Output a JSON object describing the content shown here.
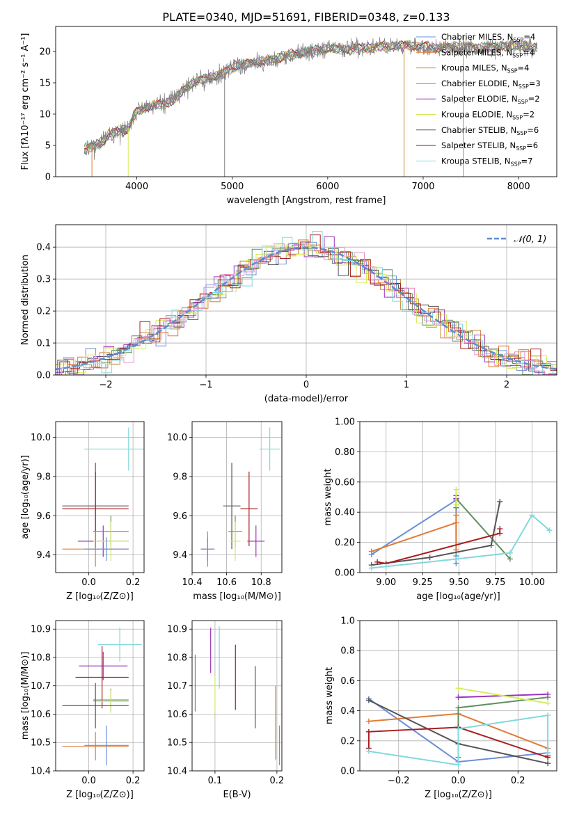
{
  "figure": {
    "title": "PLATE=0340, MJD=51691, FIBERID=0348, z=0.133"
  },
  "colors": {
    "Chabrier MILES": "#6a8fd8",
    "Salpeter MILES": "#e07b35",
    "Kroupa MILES": "#c8862e",
    "Chabrier ELODIE": "#5f8f60",
    "Salpeter ELODIE": "#9a35b8",
    "Kroupa ELODIE": "#d6ea5a",
    "Chabrier STELIB": "#555555",
    "Salpeter STELIB": "#a91e1e",
    "Kroupa STELIB": "#82d8dc",
    "data": "#7f7f7f",
    "normal": "#5b8bd6"
  },
  "chart_data": [
    {
      "id": "spectrum",
      "type": "line",
      "xlabel": "wavelength [Angstrom, rest frame]",
      "ylabel": "Flux [fλ10⁻¹⁷ erg cm⁻² s⁻¹ A⁻¹]",
      "xlim": [
        3150,
        8400
      ],
      "ylim": [
        0,
        24
      ],
      "xticks": [
        4000,
        5000,
        6000,
        7000,
        8000
      ],
      "yticks": [
        0,
        5,
        10,
        15,
        20
      ],
      "legend_position": "top-right",
      "legend": [
        {
          "label": "Chabrier MILES, N",
          "sub": "SSP",
          "suffix": "=4",
          "color": "#6a8fd8"
        },
        {
          "label": "Salpeter MILES, N",
          "sub": "SSP",
          "suffix": "=4",
          "color": "#e07b35"
        },
        {
          "label": "Kroupa MILES, N",
          "sub": "SSP",
          "suffix": "=4",
          "color": "#c8862e"
        },
        {
          "label": "Chabrier ELODIE, N",
          "sub": "SSP",
          "suffix": "=3",
          "color": "#5f8f60"
        },
        {
          "label": "Salpeter ELODIE, N",
          "sub": "SSP",
          "suffix": "=2",
          "color": "#9a35b8"
        },
        {
          "label": "Kroupa ELODIE, N",
          "sub": "SSP",
          "suffix": "=2",
          "color": "#d6ea5a"
        },
        {
          "label": "Chabrier STELIB, N",
          "sub": "SSP",
          "suffix": "=6",
          "color": "#555555"
        },
        {
          "label": "Salpeter STELIB, N",
          "sub": "SSP",
          "suffix": "=6",
          "color": "#a91e1e"
        },
        {
          "label": "Kroupa STELIB, N",
          "sub": "SSP",
          "suffix": "=7",
          "color": "#82d8dc"
        }
      ],
      "continuum": [
        [
          3450,
          4.5
        ],
        [
          3600,
          5.2
        ],
        [
          3700,
          6.5
        ],
        [
          3800,
          7.3
        ],
        [
          3900,
          7.5
        ],
        [
          4000,
          10.5
        ],
        [
          4100,
          11
        ],
        [
          4200,
          11.5
        ],
        [
          4300,
          11.7
        ],
        [
          4400,
          12.5
        ],
        [
          4500,
          14
        ],
        [
          4600,
          15
        ],
        [
          4700,
          15.5
        ],
        [
          4800,
          16
        ],
        [
          4900,
          16.5
        ],
        [
          5000,
          17.5
        ],
        [
          5200,
          18.2
        ],
        [
          5400,
          18.6
        ],
        [
          5600,
          19.5
        ],
        [
          5800,
          20
        ],
        [
          6000,
          20.5
        ],
        [
          6200,
          20.3
        ],
        [
          6400,
          20.5
        ],
        [
          6600,
          20.8
        ],
        [
          6800,
          21
        ],
        [
          7000,
          20.8
        ],
        [
          7200,
          20.5
        ],
        [
          7400,
          20.8
        ],
        [
          7600,
          20.5
        ],
        [
          7800,
          20.8
        ],
        [
          8000,
          21
        ],
        [
          8200,
          20.5
        ]
      ]
    },
    {
      "id": "residuals",
      "type": "histogram",
      "xlabel": "(data-model)/error",
      "ylabel": "Normed distribution",
      "xlim": [
        -2.5,
        2.5
      ],
      "ylim": [
        0,
        0.47
      ],
      "xticks": [
        -2,
        -1,
        0,
        1,
        2
      ],
      "yticks": [
        0.0,
        0.1,
        0.2,
        0.3,
        0.4
      ],
      "grid": true,
      "legend_position": "top-right",
      "normal_label": "𝒩(0, 1)",
      "normal": {
        "mu": 0,
        "sigma": 1
      }
    },
    {
      "id": "age-vs-Z",
      "type": "errorbar",
      "xlabel": "Z [log₁₀(Z/Z⊙)]",
      "ylabel": "age  [log₁₀(age/yr)]",
      "xlim": [
        -0.15,
        0.25
      ],
      "ylim": [
        9.31,
        10.08
      ],
      "xticks": [
        0.0,
        0.2
      ],
      "yticks": [
        9.4,
        9.6,
        9.8,
        10.0
      ],
      "points": [
        {
          "model": "Kroupa STELIB",
          "x": 0.18,
          "y": 9.94,
          "xerr": 0.2,
          "yerr": 0.11
        },
        {
          "model": "Chabrier STELIB",
          "x": 0.03,
          "y": 9.65,
          "xerr": 0.15,
          "yerr": 0.22
        },
        {
          "model": "Salpeter STELIB",
          "x": 0.03,
          "y": 9.635,
          "xerr": 0.15,
          "yerr": 0.19
        },
        {
          "model": "Salpeter ELODIE",
          "x": 0.065,
          "y": 9.47,
          "xerr": 0.115,
          "yerr": 0.08
        },
        {
          "model": "Chabrier ELODIE",
          "x": 0.1,
          "y": 9.52,
          "xerr": 0.08,
          "yerr": 0.08
        },
        {
          "model": "Kroupa ELODIE",
          "x": 0.1,
          "y": 9.47,
          "xerr": 0.08,
          "yerr": 0.1
        },
        {
          "model": "Salpeter MILES",
          "x": 0.03,
          "y": 9.43,
          "xerr": 0.15,
          "yerr": 0.09
        },
        {
          "model": "Chabrier MILES",
          "x": 0.08,
          "y": 9.43,
          "xerr": 0.1,
          "yerr": 0.06
        }
      ]
    },
    {
      "id": "age-vs-mass",
      "type": "errorbar",
      "xlabel": "mass [log₁₀(M/M⊙)]",
      "xlim": [
        10.4,
        10.92
      ],
      "ylim": [
        9.31,
        10.08
      ],
      "xticks": [
        10.4,
        10.6,
        10.8
      ],
      "yticks": [
        9.4,
        9.6,
        9.8,
        10.0
      ],
      "points": [
        {
          "model": "Kroupa STELIB",
          "x": 10.85,
          "y": 9.94,
          "xerr": 0.06,
          "yerr": 0.11
        },
        {
          "model": "Chabrier STELIB",
          "x": 10.63,
          "y": 9.65,
          "xerr": 0.05,
          "yerr": 0.22
        },
        {
          "model": "Salpeter STELIB",
          "x": 10.73,
          "y": 9.635,
          "xerr": 0.05,
          "yerr": 0.19
        },
        {
          "model": "Salpeter ELODIE",
          "x": 10.77,
          "y": 9.47,
          "xerr": 0.05,
          "yerr": 0.08
        },
        {
          "model": "Chabrier ELODIE",
          "x": 10.65,
          "y": 9.52,
          "xerr": 0.04,
          "yerr": 0.08
        },
        {
          "model": "Kroupa ELODIE",
          "x": 10.65,
          "y": 9.47,
          "xerr": 0.03,
          "yerr": 0.1
        },
        {
          "model": "Salpeter MILES",
          "x": 10.49,
          "y": 9.43,
          "xerr": 0.04,
          "yerr": 0.09
        },
        {
          "model": "Chabrier MILES",
          "x": 10.49,
          "y": 9.43,
          "xerr": 0.04,
          "yerr": 0.06
        }
      ]
    },
    {
      "id": "weight-vs-age",
      "type": "line",
      "xlabel": "age  [log₁₀(age/yr)]",
      "ylabel": "mass weight",
      "xlim": [
        8.82,
        10.17
      ],
      "ylim": [
        0,
        1.0
      ],
      "xticks": [
        9.0,
        9.25,
        9.5,
        9.75,
        10.0
      ],
      "yticks": [
        0.0,
        0.2,
        0.4,
        0.6,
        0.8,
        1.0
      ],
      "grid": true,
      "series": [
        {
          "model": "Chabrier MILES",
          "x": [
            8.9,
            9.48,
            9.48,
            9.48
          ],
          "y": [
            0.12,
            0.48,
            0.11,
            0.06
          ]
        },
        {
          "model": "Salpeter MILES",
          "x": [
            8.9,
            9.48,
            9.48,
            9.48
          ],
          "y": [
            0.14,
            0.33,
            0.38,
            0.15
          ]
        },
        {
          "model": "Chabrier ELODIE",
          "x": [
            9.48,
            9.48,
            9.85
          ],
          "y": [
            0.43,
            0.49,
            0.09
          ]
        },
        {
          "model": "Salpeter ELODIE",
          "x": [
            9.48,
            9.48
          ],
          "y": [
            0.49,
            0.51
          ]
        },
        {
          "model": "Kroupa ELODIE",
          "x": [
            9.48,
            9.48
          ],
          "y": [
            0.55,
            0.45
          ]
        },
        {
          "model": "Chabrier STELIB",
          "x": [
            8.9,
            9.3,
            9.72,
            9.78
          ],
          "y": [
            0.05,
            0.1,
            0.18,
            0.47
          ]
        },
        {
          "model": "Salpeter STELIB",
          "x": [
            8.94,
            9.0,
            9.78,
            9.78
          ],
          "y": [
            0.07,
            0.06,
            0.26,
            0.29
          ]
        },
        {
          "model": "Kroupa STELIB",
          "x": [
            8.9,
            9.0,
            9.48,
            9.85,
            10.0,
            10.12
          ],
          "y": [
            0.03,
            0.04,
            0.09,
            0.13,
            0.38,
            0.28
          ]
        }
      ]
    },
    {
      "id": "mass-vs-Z",
      "type": "errorbar",
      "xlabel": "Z [log₁₀(Z/Z⊙)]",
      "ylabel": "mass [log₁₀(M/M⊙)]",
      "xlim": [
        -0.15,
        0.25
      ],
      "ylim": [
        10.4,
        10.93
      ],
      "xticks": [
        0.0,
        0.2
      ],
      "yticks": [
        10.4,
        10.5,
        10.6,
        10.7,
        10.8,
        10.9
      ],
      "points": [
        {
          "model": "Kroupa STELIB",
          "x": 0.14,
          "y": 10.845,
          "xerr": 0.1,
          "yerr": 0.06
        },
        {
          "model": "Salpeter ELODIE",
          "x": 0.065,
          "y": 10.77,
          "xerr": 0.11,
          "yerr": 0.05
        },
        {
          "model": "Salpeter STELIB",
          "x": 0.06,
          "y": 10.73,
          "xerr": 0.12,
          "yerr": 0.11
        },
        {
          "model": "Chabrier ELODIE",
          "x": 0.1,
          "y": 10.65,
          "xerr": 0.08,
          "yerr": 0.04
        },
        {
          "model": "Kroupa ELODIE",
          "x": 0.1,
          "y": 10.645,
          "xerr": 0.08,
          "yerr": 0.04
        },
        {
          "model": "Chabrier STELIB",
          "x": 0.03,
          "y": 10.63,
          "xerr": 0.15,
          "yerr": 0.08
        },
        {
          "model": "Salpeter MILES",
          "x": 0.03,
          "y": 10.487,
          "xerr": 0.15,
          "yerr": 0.05
        },
        {
          "model": "Chabrier MILES",
          "x": 0.08,
          "y": 10.49,
          "xerr": 0.1,
          "yerr": 0.07
        }
      ]
    },
    {
      "id": "mass-vs-ebv",
      "type": "errorbar",
      "xlabel": "E(B-V)",
      "xlim": [
        0.063,
        0.208
      ],
      "ylim": [
        10.4,
        10.93
      ],
      "xticks": [
        0.1,
        0.2
      ],
      "yticks": [
        10.4,
        10.5,
        10.6,
        10.7,
        10.8,
        10.9
      ],
      "points": [
        {
          "model": "Chabrier ELODIE",
          "x": 0.068,
          "y": 10.71,
          "xerr": 0,
          "yerr": 0.1
        },
        {
          "model": "Salpeter ELODIE",
          "x": 0.093,
          "y": 10.825,
          "xerr": 0,
          "yerr": 0.08
        },
        {
          "model": "Kroupa STELIB",
          "x": 0.107,
          "y": 10.8,
          "xerr": 0,
          "yerr": 0.11
        },
        {
          "model": "Kroupa ELODIE",
          "x": 0.1,
          "y": 10.67,
          "xerr": 0,
          "yerr": 0.065
        },
        {
          "model": "Salpeter STELIB",
          "x": 0.133,
          "y": 10.73,
          "xerr": 0,
          "yerr": 0.115
        },
        {
          "model": "Chabrier STELIB",
          "x": 0.165,
          "y": 10.66,
          "xerr": 0,
          "yerr": 0.11
        },
        {
          "model": "Kroupa MILES",
          "x": 0.198,
          "y": 10.57,
          "xerr": 0,
          "yerr": 0.13
        },
        {
          "model": "Chabrier MILES",
          "x": 0.204,
          "y": 10.49,
          "xerr": 0,
          "yerr": 0.07
        }
      ]
    },
    {
      "id": "weight-vs-Z",
      "type": "line",
      "xlabel": "Z [log₁₀(Z/Z⊙)]",
      "ylabel": "mass weight",
      "xlim": [
        -0.33,
        0.33
      ],
      "ylim": [
        0,
        1.0
      ],
      "xticks": [
        -0.2,
        0.0,
        0.2
      ],
      "yticks": [
        0.0,
        0.2,
        0.4,
        0.6,
        0.8,
        1.0
      ],
      "grid": true,
      "series": [
        {
          "model": "Chabrier MILES",
          "x": [
            -0.3,
            0.0,
            0.3
          ],
          "y": [
            0.48,
            0.06,
            0.12
          ]
        },
        {
          "model": "Salpeter MILES",
          "x": [
            -0.3,
            0.0,
            0.3
          ],
          "y": [
            0.33,
            0.38,
            0.15
          ]
        },
        {
          "model": "Chabrier ELODIE",
          "x": [
            0.0,
            0.0,
            0.3
          ],
          "y": [
            0.09,
            0.42,
            0.49
          ]
        },
        {
          "model": "Salpeter ELODIE",
          "x": [
            0.0,
            0.3
          ],
          "y": [
            0.49,
            0.51
          ]
        },
        {
          "model": "Kroupa ELODIE",
          "x": [
            0.0,
            0.3
          ],
          "y": [
            0.55,
            0.45
          ]
        },
        {
          "model": "Chabrier STELIB",
          "x": [
            -0.3,
            0.0,
            0.0,
            0.3
          ],
          "y": [
            0.47,
            0.18,
            0.18,
            0.05
          ]
        },
        {
          "model": "Salpeter STELIB",
          "x": [
            -0.3,
            -0.3,
            0.0,
            0.3,
            0.3
          ],
          "y": [
            0.15,
            0.26,
            0.29,
            0.09,
            0.1
          ]
        },
        {
          "model": "Kroupa STELIB",
          "x": [
            -0.3,
            0.0,
            0.0,
            0.3,
            0.3
          ],
          "y": [
            0.13,
            0.04,
            0.28,
            0.37,
            0.12
          ]
        }
      ]
    }
  ]
}
